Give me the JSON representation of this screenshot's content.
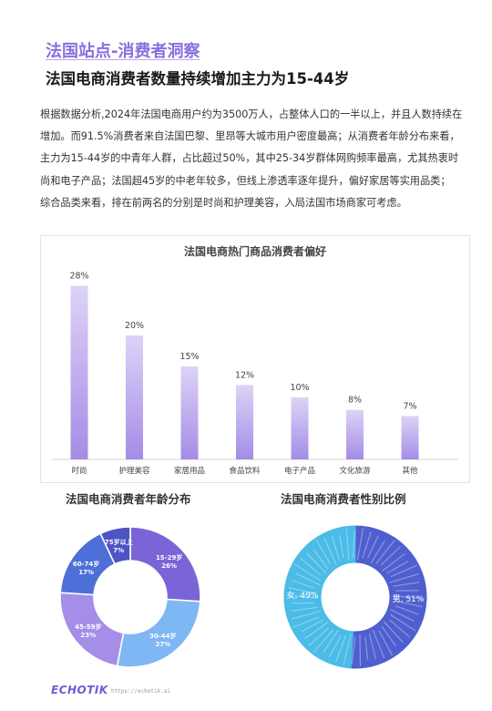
{
  "header": {
    "title": "法国站点-消费者洞察",
    "subtitle": "法国电商消费者数量持续增加主力为15-44岁"
  },
  "body_paragraphs": [
    "根据数据分析,2024年法国电商用户约为3500万人，占整体人口的一半以上，并且人数持续在增加。而91.5%消费者来自法国巴黎、里昂等大城市用户密度最高；从消费者年龄分布来看，主力为15-44岁的中青年人群，占比超过50%，其中25-34岁群体网购频率最高，尤其热衷时尚和电子产品；法国超45岁的中老年较多，但线上渗透率逐年提升，偏好家居等实用品类；",
    "综合品类来看，排在前两名的分别是时尚和护理美容，入局法国市场商家可考虑。"
  ],
  "chart_data": [
    {
      "type": "bar",
      "title": "法国电商热门商品消费者偏好",
      "categories": [
        "时尚",
        "护理美容",
        "家居用品",
        "食品饮料",
        "电子产品",
        "文化旅游",
        "其他"
      ],
      "values": [
        28,
        20,
        15,
        12,
        10,
        8,
        7
      ],
      "value_labels": [
        "28%",
        "20%",
        "15%",
        "12%",
        "10%",
        "8%",
        "7%"
      ],
      "unit": "%",
      "ylim": [
        0,
        30
      ],
      "grid": false,
      "colors": {
        "bar_top": "#ddd3f7",
        "bar_bottom": "#a48ce6"
      }
    },
    {
      "type": "pie",
      "title": "法国电商消费者年龄分布",
      "donut": true,
      "slices": [
        {
          "name": "15-29岁",
          "value": 26,
          "label": "26%",
          "color": "#7b65d6"
        },
        {
          "name": "30-44岁",
          "value": 27,
          "label": "27%",
          "color": "#7fb6f4"
        },
        {
          "name": "45-59岁",
          "value": 23,
          "label": "23%",
          "color": "#a58ee8"
        },
        {
          "name": "60-74岁",
          "value": 17,
          "label": "17%",
          "color": "#4f6fd8"
        },
        {
          "name": "75岁以上",
          "value": 7,
          "label": "7%",
          "color": "#4d55c4"
        }
      ]
    },
    {
      "type": "pie",
      "title": "法国电商消费者性别比例",
      "donut": true,
      "style": "sketch",
      "slices": [
        {
          "name": "男",
          "value": 51,
          "label": "男, 51%",
          "color": "#4f5fcf"
        },
        {
          "name": "女",
          "value": 49,
          "label": "女, 49%",
          "color": "#4bbbe7"
        }
      ]
    }
  ],
  "footer": {
    "logo_text": "ECHOTIK",
    "url": "https://echotik.ai"
  }
}
